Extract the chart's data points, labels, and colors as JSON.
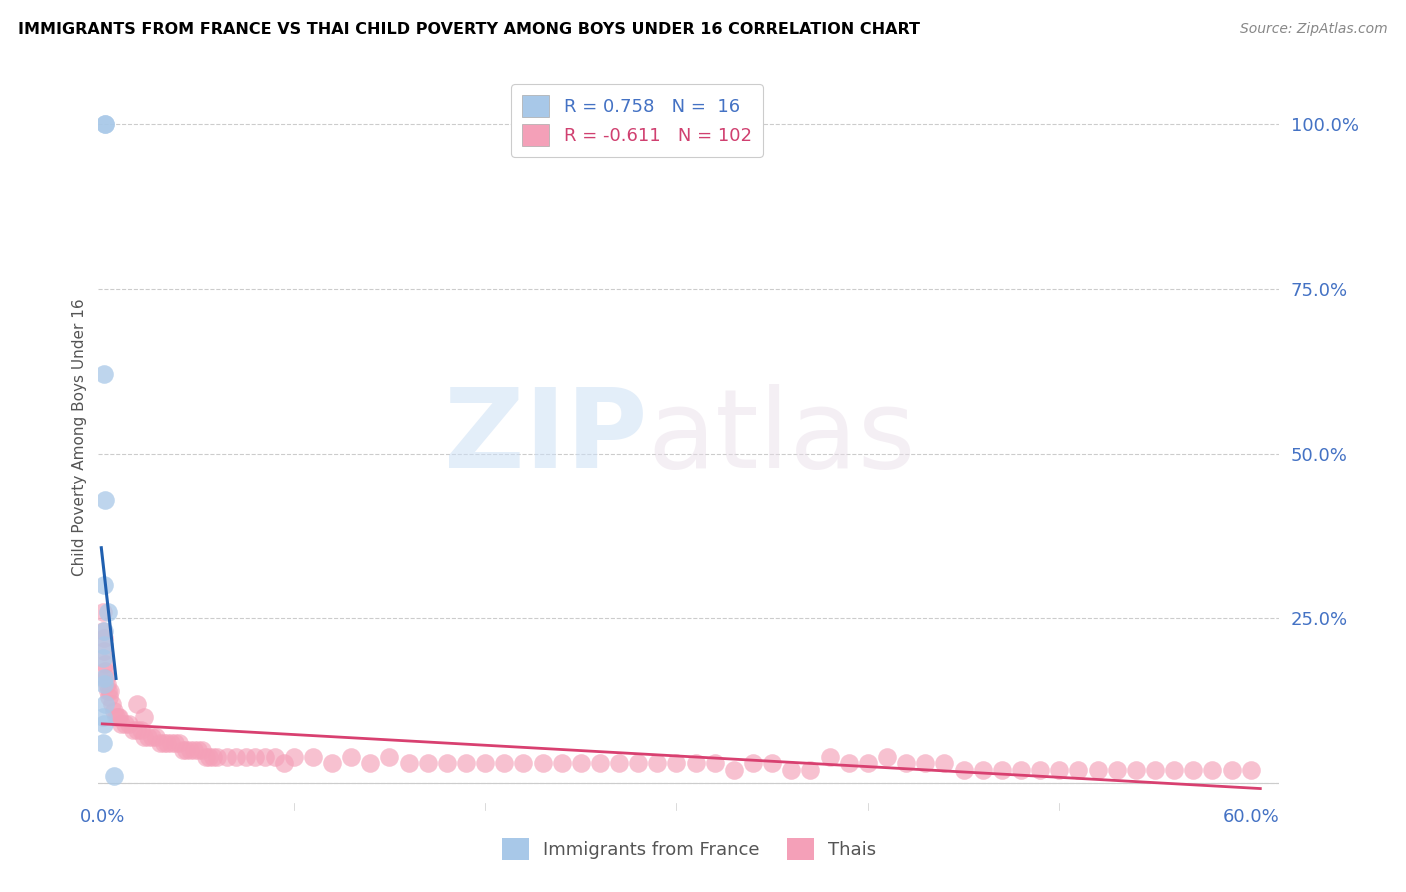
{
  "title": "IMMIGRANTS FROM FRANCE VS THAI CHILD POVERTY AMONG BOYS UNDER 16 CORRELATION CHART",
  "source": "Source: ZipAtlas.com",
  "ylabel": "Child Poverty Among Boys Under 16",
  "blue_R": 0.758,
  "blue_N": 16,
  "pink_R": -0.611,
  "pink_N": 102,
  "blue_color": "#a8c8e8",
  "pink_color": "#f4a0b8",
  "blue_line_color": "#2060b0",
  "pink_line_color": "#d84070",
  "blue_label_color": "#4472c4",
  "pink_label_color": "#d04070",
  "right_tick_color": "#4472c4",
  "xlabel_color": "#4472c4",
  "blue_scatter_x": [
    0.0005,
    0.001,
    0.0012,
    0.0008,
    0.0015,
    0.0009,
    0.0006,
    0.0011,
    0.0007,
    0.0013,
    0.0004,
    0.0016,
    0.001,
    0.0008,
    0.003,
    0.006
  ],
  "blue_scatter_y": [
    0.06,
    0.09,
    1.0,
    0.62,
    0.43,
    0.3,
    0.19,
    0.23,
    0.15,
    0.12,
    0.1,
    1.0,
    0.21,
    0.16,
    0.26,
    0.01
  ],
  "pink_scatter_x": [
    0.0003,
    0.0005,
    0.0008,
    0.001,
    0.0013,
    0.0015,
    0.002,
    0.0025,
    0.003,
    0.0035,
    0.004,
    0.005,
    0.006,
    0.007,
    0.008,
    0.009,
    0.01,
    0.012,
    0.014,
    0.016,
    0.018,
    0.02,
    0.022,
    0.024,
    0.026,
    0.028,
    0.03,
    0.032,
    0.034,
    0.036,
    0.038,
    0.04,
    0.042,
    0.044,
    0.046,
    0.048,
    0.05,
    0.052,
    0.054,
    0.056,
    0.058,
    0.06,
    0.065,
    0.07,
    0.075,
    0.08,
    0.085,
    0.09,
    0.095,
    0.1,
    0.11,
    0.12,
    0.13,
    0.14,
    0.15,
    0.16,
    0.17,
    0.18,
    0.19,
    0.2,
    0.21,
    0.22,
    0.23,
    0.24,
    0.25,
    0.26,
    0.27,
    0.28,
    0.29,
    0.3,
    0.31,
    0.32,
    0.33,
    0.34,
    0.35,
    0.36,
    0.37,
    0.38,
    0.39,
    0.4,
    0.41,
    0.42,
    0.43,
    0.44,
    0.45,
    0.46,
    0.47,
    0.48,
    0.49,
    0.5,
    0.51,
    0.52,
    0.53,
    0.54,
    0.55,
    0.56,
    0.57,
    0.58,
    0.59,
    0.6,
    0.018,
    0.022
  ],
  "pink_scatter_y": [
    0.23,
    0.26,
    0.22,
    0.2,
    0.18,
    0.17,
    0.16,
    0.15,
    0.14,
    0.13,
    0.14,
    0.12,
    0.11,
    0.1,
    0.1,
    0.1,
    0.09,
    0.09,
    0.09,
    0.08,
    0.08,
    0.08,
    0.07,
    0.07,
    0.07,
    0.07,
    0.06,
    0.06,
    0.06,
    0.06,
    0.06,
    0.06,
    0.05,
    0.05,
    0.05,
    0.05,
    0.05,
    0.05,
    0.04,
    0.04,
    0.04,
    0.04,
    0.04,
    0.04,
    0.04,
    0.04,
    0.04,
    0.04,
    0.03,
    0.04,
    0.04,
    0.03,
    0.04,
    0.03,
    0.04,
    0.03,
    0.03,
    0.03,
    0.03,
    0.03,
    0.03,
    0.03,
    0.03,
    0.03,
    0.03,
    0.03,
    0.03,
    0.03,
    0.03,
    0.03,
    0.03,
    0.03,
    0.02,
    0.03,
    0.03,
    0.02,
    0.02,
    0.04,
    0.03,
    0.03,
    0.04,
    0.03,
    0.03,
    0.03,
    0.02,
    0.02,
    0.02,
    0.02,
    0.02,
    0.02,
    0.02,
    0.02,
    0.02,
    0.02,
    0.02,
    0.02,
    0.02,
    0.02,
    0.02,
    0.02,
    0.12,
    0.1
  ]
}
